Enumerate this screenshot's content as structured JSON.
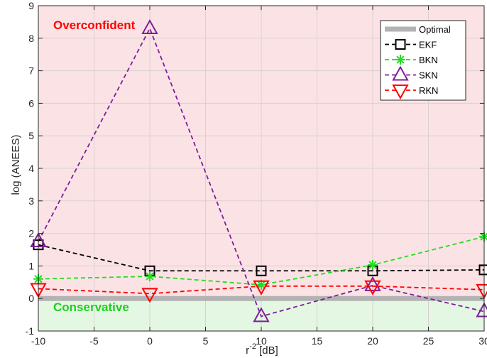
{
  "chart_data": {
    "type": "line",
    "title": "",
    "xlabel": "r",
    "xlabel_sup": "-2",
    "xlabel_unit": " [dB]",
    "ylabel": "log (ANEES)",
    "xlim": [
      -10,
      30
    ],
    "ylim": [
      -1,
      9
    ],
    "xticks": [
      "-10",
      "-5",
      "0",
      "5",
      "10",
      "15",
      "20",
      "25",
      "30"
    ],
    "yticks": [
      "-1",
      "0",
      "1",
      "2",
      "3",
      "4",
      "5",
      "6",
      "7",
      "8",
      "9"
    ],
    "grid": true,
    "legend_position": "top-right",
    "x": [
      -10,
      0,
      10,
      20,
      30
    ],
    "optimal": {
      "name": "Optimal",
      "value": 0,
      "color": "#b3b3b3"
    },
    "series": [
      {
        "name": "EKF",
        "values": [
          1.65,
          0.85,
          0.85,
          0.85,
          0.88
        ],
        "color": "#000000",
        "marker": "square"
      },
      {
        "name": "BKN",
        "values": [
          0.6,
          0.68,
          0.42,
          1.03,
          1.9
        ],
        "color": "#22dd22",
        "marker": "asterisk"
      },
      {
        "name": "SKN",
        "values": [
          1.75,
          8.3,
          -0.55,
          0.4,
          -0.4
        ],
        "color": "#7e1e9c",
        "marker": "triangle-up"
      },
      {
        "name": "RKN",
        "values": [
          0.3,
          0.15,
          0.38,
          0.38,
          0.27
        ],
        "color": "#ff0000",
        "marker": "triangle-down"
      }
    ],
    "regions": {
      "over": {
        "label": "Overconfident",
        "color": "#ff0000",
        "fill": "#fbe3e5"
      },
      "cons": {
        "label": "Conservative",
        "color": "#1ed01e",
        "fill": "#e4f7e3"
      }
    }
  }
}
